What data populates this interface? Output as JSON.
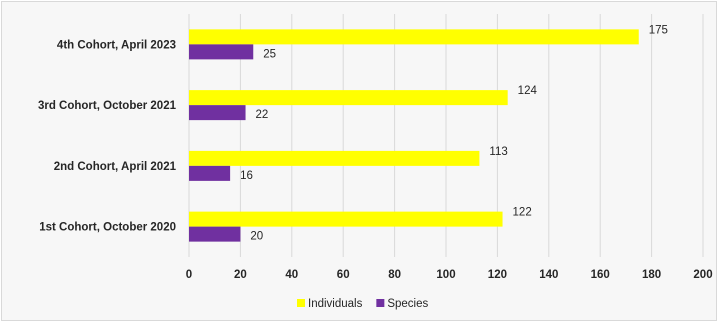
{
  "chart_data": {
    "type": "bar",
    "orientation": "horizontal",
    "categories": [
      "4th Cohort, April 2023",
      "3rd Cohort, October 2021",
      "2nd Cohort, April 2021",
      "1st Cohort, October 2020"
    ],
    "series": [
      {
        "name": "Individuals",
        "color": "#ffff00",
        "values": [
          175,
          124,
          113,
          122
        ]
      },
      {
        "name": "Species",
        "color": "#7030a0",
        "values": [
          25,
          22,
          16,
          20
        ]
      }
    ],
    "xlim": [
      0,
      200
    ],
    "xticks": [
      "0",
      "20",
      "40",
      "60",
      "80",
      "100",
      "120",
      "140",
      "160",
      "180",
      "200"
    ],
    "grid": "vertical",
    "legend": "bottom",
    "data_labels": true
  }
}
